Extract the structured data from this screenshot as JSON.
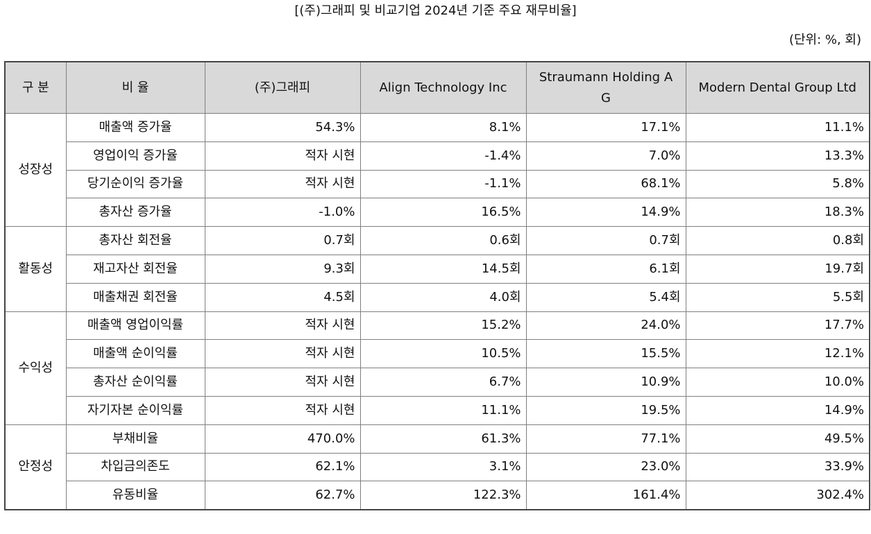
{
  "title": "[(주)그래피 및 비교기업 2024년 기준 주요 재무비율]",
  "unit": "(단위: %, 회)",
  "headers": [
    "구 분",
    "비 율",
    "(주)그래피",
    "Align Technology Inc",
    "Straumann Holding AG",
    "Modern Dental Group Ltd"
  ],
  "groups": [
    {
      "name": "성장성",
      "rows": [
        {
          "metric": "매출액 증가율",
          "values": [
            "54.3%",
            "8.1%",
            "17.1%",
            "11.1%"
          ]
        },
        {
          "metric": "영업이익 증가율",
          "values": [
            "적자 시현",
            "-1.4%",
            "7.0%",
            "13.3%"
          ]
        },
        {
          "metric": "당기순이익 증가율",
          "values": [
            "적자 시현",
            "-1.1%",
            "68.1%",
            "5.8%"
          ]
        },
        {
          "metric": "총자산 증가율",
          "values": [
            "-1.0%",
            "16.5%",
            "14.9%",
            "18.3%"
          ]
        }
      ]
    },
    {
      "name": "활동성",
      "rows": [
        {
          "metric": "총자산 회전율",
          "values": [
            "0.7회",
            "0.6회",
            "0.7회",
            "0.8회"
          ]
        },
        {
          "metric": "재고자산 회전율",
          "values": [
            "9.3회",
            "14.5회",
            "6.1회",
            "19.7회"
          ]
        },
        {
          "metric": "매출채권 회전율",
          "values": [
            "4.5회",
            "4.0회",
            "5.4회",
            "5.5회"
          ]
        }
      ]
    },
    {
      "name": "수익성",
      "rows": [
        {
          "metric": "매출액 영업이익률",
          "values": [
            "적자 시현",
            "15.2%",
            "24.0%",
            "17.7%"
          ]
        },
        {
          "metric": "매출액 순이익률",
          "values": [
            "적자 시현",
            "10.5%",
            "15.5%",
            "12.1%"
          ]
        },
        {
          "metric": "총자산 순이익률",
          "values": [
            "적자 시현",
            "6.7%",
            "10.9%",
            "10.0%"
          ]
        },
        {
          "metric": "자기자본 순이익률",
          "values": [
            "적자 시현",
            "11.1%",
            "19.5%",
            "14.9%"
          ]
        }
      ]
    },
    {
      "name": "안정성",
      "rows": [
        {
          "metric": "부채비율",
          "values": [
            "470.0%",
            "61.3%",
            "77.1%",
            "49.5%"
          ]
        },
        {
          "metric": "차입금의존도",
          "values": [
            "62.1%",
            "3.1%",
            "23.0%",
            "33.9%"
          ]
        },
        {
          "metric": "유동비율",
          "values": [
            "62.7%",
            "122.3%",
            "161.4%",
            "302.4%"
          ]
        }
      ]
    }
  ]
}
